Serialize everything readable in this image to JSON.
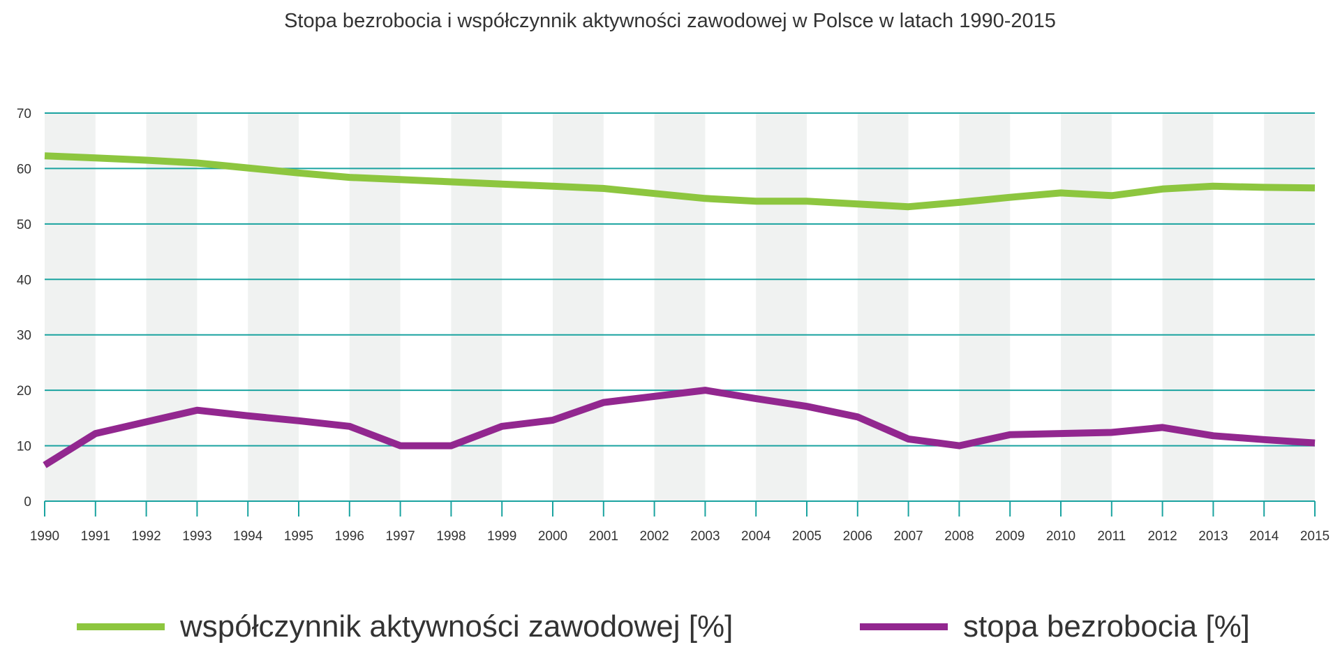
{
  "chart_data": {
    "type": "line",
    "title": "Stopa bezrobocia i współczynnik aktywności zawodowej w Polsce w latach 1990-2015",
    "xlabel": "",
    "ylabel": "",
    "ylim": [
      0,
      70
    ],
    "yticks": [
      0,
      10,
      20,
      30,
      40,
      50,
      60,
      70
    ],
    "categories": [
      "1990",
      "1991",
      "1992",
      "1993",
      "1994",
      "1995",
      "1996",
      "1997",
      "1998",
      "1999",
      "2000",
      "2001",
      "2002",
      "2003",
      "2004",
      "2005",
      "2006",
      "2007",
      "2008",
      "2009",
      "2010",
      "2011",
      "2012",
      "2013",
      "2014",
      "2015"
    ],
    "grid": true,
    "series": [
      {
        "name": "współczynnik aktywności zawodowej [%]",
        "color": "#8dc63f",
        "values": [
          62.3,
          61.9,
          61.5,
          61.0,
          60.1,
          59.2,
          58.4,
          58.0,
          57.6,
          57.2,
          56.8,
          56.4,
          55.5,
          54.6,
          54.1,
          54.1,
          53.6,
          53.1,
          53.9,
          54.8,
          55.6,
          55.1,
          56.3,
          56.8,
          56.6,
          56.5
        ]
      },
      {
        "name": "stopa bezrobocia [%]",
        "color": "#92278f",
        "values": [
          6.5,
          12.2,
          14.3,
          16.4,
          15.4,
          14.5,
          13.5,
          10.0,
          10.0,
          13.5,
          14.6,
          17.8,
          18.9,
          20.0,
          18.5,
          17.1,
          15.2,
          11.2,
          10.0,
          12.0,
          12.2,
          12.4,
          13.3,
          11.8,
          11.1,
          10.5
        ]
      }
    ],
    "legend_position": "bottom"
  },
  "colors": {
    "grid": "#1aa3a0",
    "band": "#f0f2f1",
    "text": "#333333"
  }
}
